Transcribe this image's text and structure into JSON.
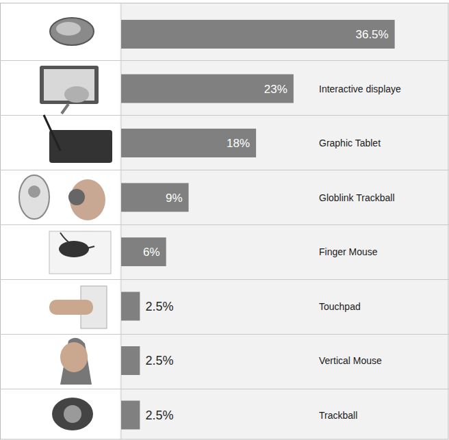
{
  "chart_data": {
    "type": "bar",
    "orientation": "horizontal",
    "categories": [
      null,
      "Interactive displaye",
      "Graphic Tablet",
      "Globlink Trackball",
      "Finger Mouse",
      "Touchpad",
      "Vertical Mouse",
      "Trackball"
    ],
    "values": [
      36.5,
      23,
      18,
      9,
      6,
      2.5,
      2.5,
      2.5
    ],
    "value_labels": [
      "36.5%",
      "23%",
      "18%",
      "9%",
      "6%",
      "2.5%",
      "2.5%",
      "2.5%"
    ],
    "xlim": [
      0,
      40
    ],
    "color": "#808080",
    "data_labels": true,
    "tick_labels": false,
    "grid": false
  }
}
